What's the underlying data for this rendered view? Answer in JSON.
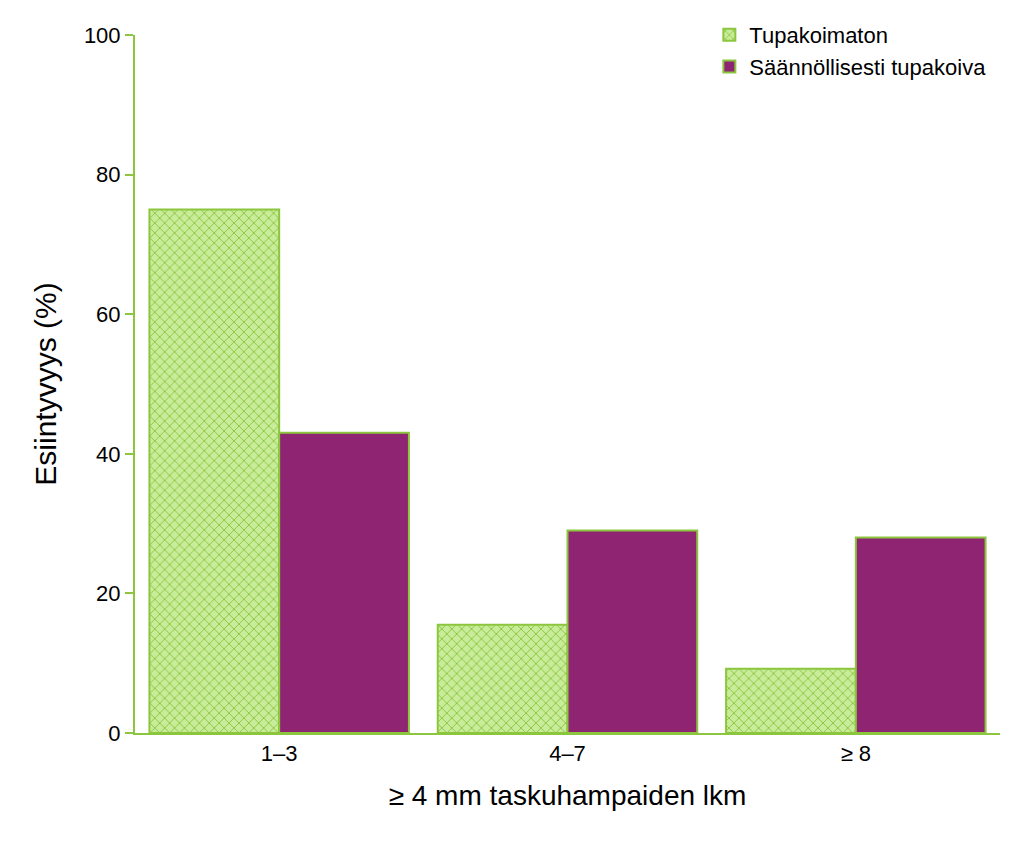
{
  "chart_data": {
    "type": "bar",
    "x_label": "≥ 4 mm taskuhampaiden lkm",
    "y_label": "Esiintyvyys (%)",
    "categories": [
      "1–3",
      "4–7",
      "≥ 8"
    ],
    "series": [
      {
        "name": "Tupakoimaton",
        "color": "#c9ec9b",
        "marker": "crosshatch",
        "values": [
          75,
          15.5,
          9.2
        ]
      },
      {
        "name": "Säännöllisesti tupakoiva",
        "color": "#8e2472",
        "values": [
          43,
          29,
          28
        ]
      }
    ],
    "ylim": [
      0,
      100
    ],
    "yticks": [
      0,
      20,
      40,
      60,
      80,
      100
    ],
    "grid": false,
    "legend": "top-right"
  }
}
